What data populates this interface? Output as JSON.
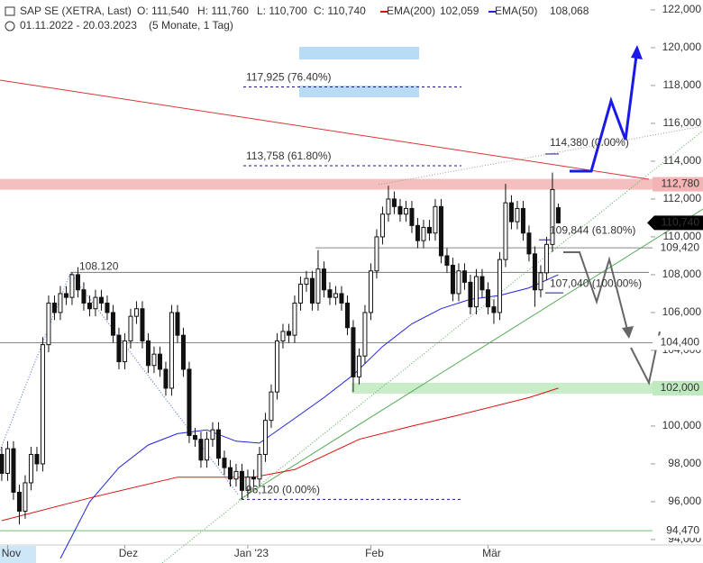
{
  "chart_data": {
    "type": "candlestick",
    "title": "SAP SE (XETRA, Last)",
    "ohlc_labels": [
      "O: 111,540",
      "H: 111,760",
      "L: 110,700",
      "C: 110,740"
    ],
    "date_range": "01.11.2022 - 20.03.2023",
    "period": "(5 Monate, 1 Tag)",
    "xlim": [
      -0.3,
      119.7
    ],
    "xticks": [
      {
        "value": 1,
        "label": "Nov"
      },
      {
        "value": 21,
        "label": "Dez"
      },
      {
        "value": 42,
        "label": "Jan '23"
      },
      {
        "value": 63,
        "label": "Feb"
      },
      {
        "value": 83,
        "label": "Mär"
      }
    ],
    "ylim": [
      92760,
      122520
    ],
    "yticks": [
      {
        "value": 94000,
        "label": "94,000"
      },
      {
        "value": 96000,
        "label": "96,000"
      },
      {
        "value": 98000,
        "label": "98,000"
      },
      {
        "value": 100000,
        "label": "100,000"
      },
      {
        "value": 102000,
        "label": "102,000"
      },
      {
        "value": 104000,
        "label": "104,000"
      },
      {
        "value": 106000,
        "label": "106,000"
      },
      {
        "value": 108000,
        "label": "108,000"
      },
      {
        "value": 110000,
        "label": "110,000"
      },
      {
        "value": 112000,
        "label": "112,000"
      },
      {
        "value": 114000,
        "label": "114,000"
      },
      {
        "value": 116000,
        "label": "116,000"
      },
      {
        "value": 118000,
        "label": "118,000"
      },
      {
        "value": 120000,
        "label": "120,000"
      },
      {
        "value": 122000,
        "label": "122,000"
      }
    ],
    "open": [
      98500,
      97500,
      98800,
      96500,
      95500,
      97000,
      98500,
      98000,
      104300,
      106500,
      106000,
      107000,
      106800,
      108000,
      107200,
      106500,
      106200,
      106800,
      106500,
      106000,
      104800,
      103400,
      104500,
      105800,
      106200,
      104500,
      103200,
      103800,
      103000,
      102000,
      106000,
      104800,
      103000,
      99500,
      99300,
      98200,
      99300,
      99800,
      98300,
      97800,
      97200,
      97600,
      96600,
      97300,
      97200,
      98500,
      100300,
      101800,
      104500,
      105000,
      104800,
      106500,
      107500,
      107800,
      106500,
      108300,
      107200,
      106800,
      107000,
      106500,
      105200,
      102600,
      103700,
      106000,
      108200,
      110000,
      111200,
      112000,
      111600,
      111200,
      111500,
      110600,
      109800,
      110500,
      110200,
      111600,
      109000,
      108500,
      107000,
      108200,
      107600,
      106300,
      107900,
      107200,
      106300,
      106000,
      108800,
      111800,
      110800,
      111500,
      110200,
      109100,
      107200,
      108100,
      109600,
      111540
    ],
    "high": [
      98900,
      99200,
      99200,
      96900,
      97400,
      98900,
      98900,
      104700,
      106900,
      106900,
      107400,
      107400,
      108120,
      108400,
      107600,
      106900,
      107200,
      107200,
      106900,
      106400,
      105200,
      104900,
      106200,
      106600,
      106600,
      104900,
      104200,
      104200,
      103400,
      106400,
      106400,
      105200,
      103400,
      99900,
      99700,
      99700,
      100200,
      100200,
      98700,
      98200,
      98000,
      98000,
      97700,
      97700,
      98900,
      100700,
      102200,
      104900,
      105400,
      105400,
      106900,
      107900,
      108200,
      108200,
      109300,
      108700,
      107600,
      107400,
      107400,
      106900,
      105600,
      104100,
      106400,
      108600,
      110400,
      111600,
      112700,
      112400,
      112000,
      111900,
      111900,
      111000,
      110900,
      110900,
      112000,
      112000,
      109400,
      108900,
      108600,
      108600,
      108000,
      108300,
      108300,
      107600,
      106700,
      109200,
      112800,
      112200,
      111900,
      111900,
      110600,
      109500,
      108500,
      110000,
      113400,
      111760
    ],
    "low": [
      97100,
      97100,
      96100,
      94800,
      95100,
      96600,
      97600,
      97600,
      103900,
      105600,
      105600,
      106400,
      106400,
      106800,
      106100,
      105800,
      105800,
      106100,
      105600,
      104400,
      103000,
      103000,
      104100,
      105400,
      104100,
      102800,
      102800,
      102600,
      101600,
      101600,
      104400,
      102600,
      99100,
      98900,
      97800,
      97800,
      98900,
      97900,
      97400,
      96800,
      96800,
      96120,
      96200,
      96800,
      96800,
      98100,
      99900,
      101400,
      104100,
      104400,
      104400,
      106100,
      107100,
      106100,
      106100,
      106800,
      106400,
      106400,
      106100,
      104800,
      101800,
      102200,
      103300,
      105600,
      107800,
      109600,
      110800,
      111200,
      110800,
      110800,
      110200,
      109400,
      109400,
      109800,
      109800,
      108600,
      108100,
      106600,
      106600,
      107200,
      105900,
      105900,
      106800,
      105900,
      105400,
      105600,
      108400,
      110400,
      110400,
      109800,
      108700,
      106300,
      106800,
      107700,
      109200,
      110700
    ],
    "close": [
      97500,
      98800,
      96500,
      95500,
      97000,
      98500,
      98000,
      104300,
      106500,
      106000,
      107000,
      106800,
      108000,
      107200,
      106500,
      106200,
      106800,
      106500,
      106000,
      104800,
      103400,
      104500,
      105800,
      106200,
      104500,
      103200,
      103800,
      103000,
      102000,
      106000,
      104800,
      103000,
      99500,
      99300,
      98200,
      99300,
      99800,
      98300,
      97800,
      97200,
      97600,
      96600,
      97300,
      97200,
      98500,
      100300,
      101800,
      104500,
      105000,
      104800,
      106500,
      107500,
      107800,
      106500,
      108300,
      107200,
      106800,
      107000,
      106500,
      105200,
      102600,
      103700,
      106000,
      108200,
      110000,
      111200,
      112000,
      111600,
      111200,
      111500,
      110600,
      109800,
      110500,
      110200,
      111600,
      109000,
      108500,
      107000,
      108200,
      107600,
      106300,
      107900,
      107200,
      106300,
      106000,
      108800,
      111800,
      110800,
      111500,
      110200,
      109100,
      107200,
      108100,
      109600,
      112500,
      110740
    ],
    "series": [
      {
        "name": "EMA(200)",
        "color": "#dd1111",
        "current_label": "102,059",
        "x": [
          0,
          15,
          30,
          43,
          50,
          61,
          70,
          77,
          90,
          95
        ],
        "values": [
          95000,
          96200,
          97300,
          97300,
          97700,
          99300,
          100000,
          100500,
          101500,
          102000
        ]
      },
      {
        "name": "EMA(50)",
        "color": "#2222dd",
        "current_label": "108,068",
        "x": [
          10,
          15,
          20,
          25,
          30,
          35,
          40,
          44,
          50,
          55,
          60,
          65,
          70,
          75,
          80,
          85,
          90,
          95
        ],
        "values": [
          93000,
          96000,
          97800,
          99000,
          99600,
          99800,
          99200,
          99100,
          100400,
          101500,
          102700,
          104200,
          105400,
          106200,
          106700,
          106900,
          107300,
          108000
        ]
      }
    ],
    "levels": [
      {
        "value": 112780,
        "label": "112,780",
        "color": "#f2b4b4",
        "band": true
      },
      {
        "value": 109420,
        "label": "109,420",
        "color": "#888888",
        "band": false
      },
      {
        "value": 104400,
        "label": "104,400",
        "color": "#888888",
        "band": false
      },
      {
        "value": 102000,
        "label": "102,000",
        "color": "#bfe9bf",
        "band": true
      },
      {
        "value": 94470,
        "label": "94,470",
        "color": "#6fbf6f",
        "band": false
      }
    ],
    "last_price": {
      "value": 110740,
      "label": "110,740"
    },
    "annotations": [
      {
        "value": 117925,
        "label": "117,925 (76.40%)"
      },
      {
        "value": 113758,
        "label": "113,758 (61.80%)"
      },
      {
        "value": 96120,
        "label": "96,120 (0.00%)"
      },
      {
        "value": 114380,
        "label": "114,380 (0.00%)"
      },
      {
        "value": 109844,
        "label": "109,844 (61.80%)"
      },
      {
        "value": 107040,
        "label": "107,040 (100.00%)"
      },
      {
        "value": 108120,
        "label": "108.120"
      }
    ]
  }
}
